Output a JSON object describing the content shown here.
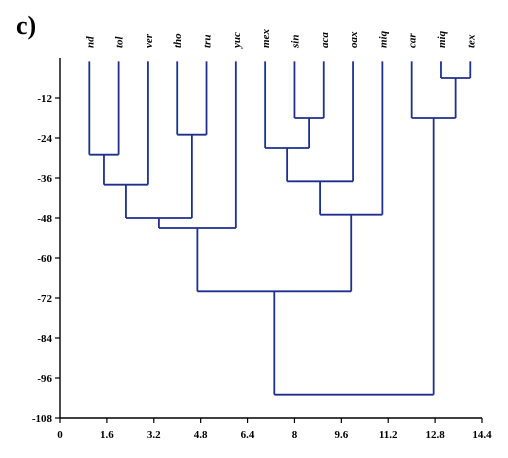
{
  "panel_label": "c)",
  "chart_data": {
    "type": "dendrogram",
    "leaves": [
      {
        "id": 0,
        "label": "nd",
        "x": 1.0
      },
      {
        "id": 1,
        "label": "tol",
        "x": 2.0
      },
      {
        "id": 2,
        "label": "ver",
        "x": 3.0
      },
      {
        "id": 3,
        "label": "tho",
        "x": 4.0
      },
      {
        "id": 4,
        "label": "tru",
        "x": 5.0
      },
      {
        "id": 5,
        "label": "yuc",
        "x": 6.0
      },
      {
        "id": 6,
        "label": "mex",
        "x": 7.0
      },
      {
        "id": 7,
        "label": "sin",
        "x": 8.0
      },
      {
        "id": 8,
        "label": "aca",
        "x": 9.0
      },
      {
        "id": 9,
        "label": "oax",
        "x": 10.0
      },
      {
        "id": 10,
        "label": "miq",
        "x": 11.0
      },
      {
        "id": 11,
        "label": "car",
        "x": 12.0
      },
      {
        "id": 12,
        "label": "miq",
        "x": 13.0
      },
      {
        "id": 13,
        "label": "tex",
        "x": 14.0
      }
    ],
    "merges": [
      {
        "id": "m1",
        "children": [
          0,
          1
        ],
        "height": -29
      },
      {
        "id": "m2",
        "children": [
          "m1",
          2
        ],
        "height": -38
      },
      {
        "id": "m3",
        "children": [
          3,
          4
        ],
        "height": -23
      },
      {
        "id": "m4",
        "children": [
          "m2",
          "m3"
        ],
        "height": -48
      },
      {
        "id": "m5",
        "children": [
          "m4",
          5
        ],
        "height": -51
      },
      {
        "id": "m6",
        "children": [
          7,
          8
        ],
        "height": -18
      },
      {
        "id": "m7",
        "children": [
          6,
          "m6"
        ],
        "height": -27
      },
      {
        "id": "m8",
        "children": [
          "m7",
          9
        ],
        "height": -37
      },
      {
        "id": "m9",
        "children": [
          "m8",
          10
        ],
        "height": -47
      },
      {
        "id": "m10",
        "children": [
          "m5",
          "m9"
        ],
        "height": -70
      },
      {
        "id": "m11",
        "children": [
          12,
          13
        ],
        "height": -6
      },
      {
        "id": "m12",
        "children": [
          11,
          "m11"
        ],
        "height": -18
      },
      {
        "id": "m13",
        "children": [
          "m10",
          "m12"
        ],
        "height": -101
      }
    ],
    "leaf_top": -1,
    "x_ticks": [
      "0",
      "1.6",
      "3.2",
      "4.8",
      "6.4",
      "8",
      "9.6",
      "11.2",
      "12.8",
      "14.4"
    ],
    "x_tick_values": [
      0,
      1.6,
      3.2,
      4.8,
      6.4,
      8,
      9.6,
      11.2,
      12.8,
      14.4
    ],
    "y_ticks": [
      "-12",
      "-24",
      "-36",
      "-48",
      "-60",
      "-72",
      "-84",
      "-96",
      "-108"
    ],
    "y_tick_values": [
      -12,
      -24,
      -36,
      -48,
      -60,
      -72,
      -84,
      -96,
      -108
    ],
    "xlim": [
      0,
      14.4
    ],
    "ylim": [
      -108,
      0
    ],
    "line_color": "#1f2f8f"
  }
}
